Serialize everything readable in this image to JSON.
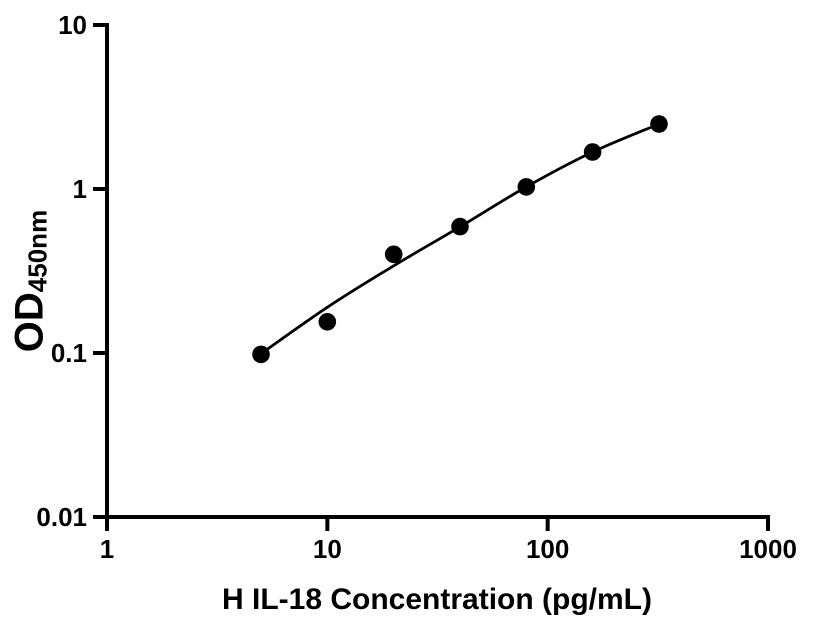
{
  "chart_data": {
    "type": "scatter",
    "title": "",
    "xlabel": "H IL-18 Concentration (pg/mL)",
    "ylabel": {
      "main": "OD",
      "subscript": "450nm"
    },
    "x_scale": "log10",
    "y_scale": "log10",
    "xlim": [
      1,
      1000
    ],
    "ylim": [
      0.01,
      10
    ],
    "x_ticks": {
      "values": [
        1,
        10,
        100,
        1000
      ],
      "labels": [
        "1",
        "10",
        "100",
        "1000"
      ]
    },
    "y_ticks": {
      "values": [
        10,
        1,
        0.1,
        0.01
      ],
      "labels": [
        "10",
        "1",
        "0.1",
        "0.01"
      ]
    },
    "grid": false,
    "legend": "none",
    "colors": {
      "ink": "#000000",
      "background": "#ffffff"
    },
    "series": [
      {
        "name": "standard-curve-points",
        "marker": "filled-circle",
        "color": "#000000",
        "x": [
          5,
          10,
          20,
          40,
          80,
          160,
          320
        ],
        "y": [
          0.098,
          0.155,
          0.4,
          0.59,
          1.03,
          1.68,
          2.49
        ]
      }
    ],
    "fit_curve": {
      "name": "4pl-fit-line",
      "color": "#000000",
      "x": [
        5,
        10,
        20,
        40,
        80,
        160,
        320
      ],
      "y": [
        0.099,
        0.19,
        0.34,
        0.588,
        1.03,
        1.68,
        2.49
      ]
    }
  }
}
